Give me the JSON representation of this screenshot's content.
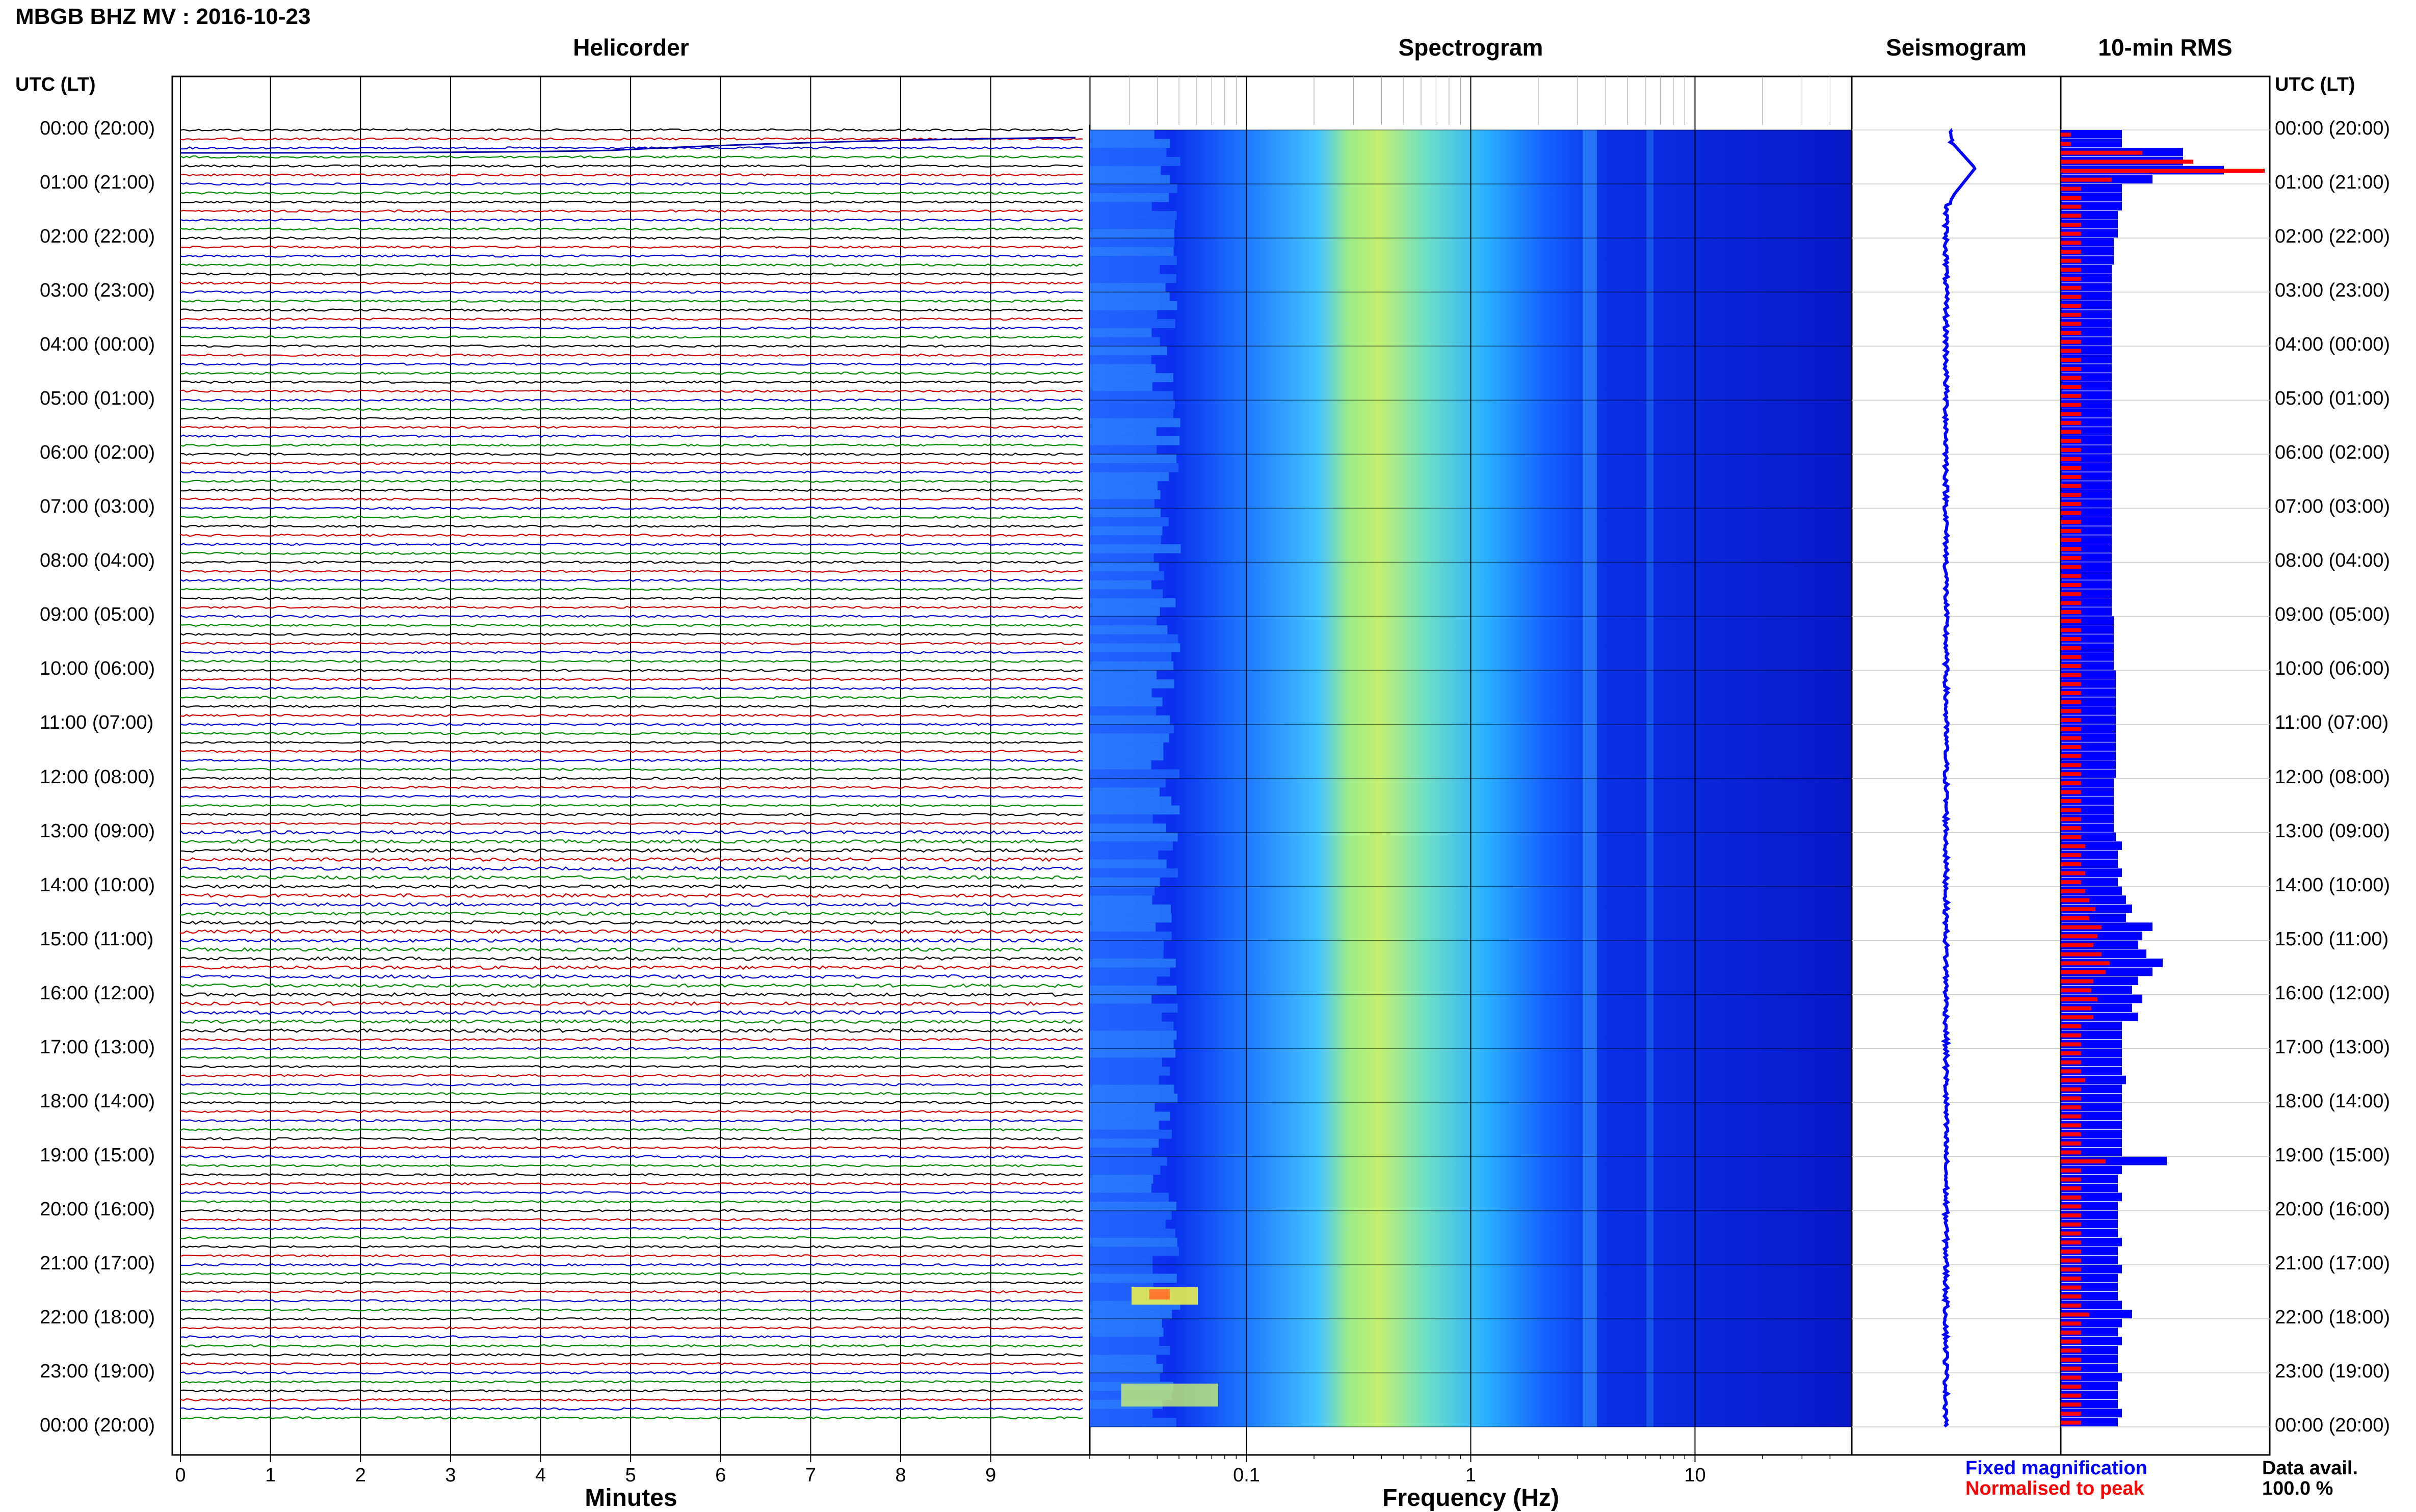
{
  "title": "MBGB BHZ MV : 2016-10-23",
  "panels": {
    "helicorder": "Helicorder",
    "spectrogram": "Spectrogram",
    "seismogram": "Seismogram",
    "rms": "10-min RMS"
  },
  "axis_headers": {
    "left": "UTC (LT)",
    "right": "UTC (LT)"
  },
  "time_labels": [
    "00:00 (20:00)",
    "01:00 (21:00)",
    "02:00 (22:00)",
    "03:00 (23:00)",
    "04:00 (00:00)",
    "05:00 (01:00)",
    "06:00 (02:00)",
    "07:00 (03:00)",
    "08:00 (04:00)",
    "09:00 (05:00)",
    "10:00 (06:00)",
    "11:00 (07:00)",
    "12:00 (08:00)",
    "13:00 (09:00)",
    "14:00 (10:00)",
    "15:00 (11:00)",
    "16:00 (12:00)",
    "17:00 (13:00)",
    "18:00 (14:00)",
    "19:00 (15:00)",
    "20:00 (16:00)",
    "21:00 (17:00)",
    "22:00 (18:00)",
    "23:00 (19:00)",
    "00:00 (20:00)"
  ],
  "x_axes": {
    "minutes": {
      "label": "Minutes",
      "ticks": [
        "0",
        "1",
        "2",
        "3",
        "4",
        "5",
        "6",
        "7",
        "8",
        "9"
      ]
    },
    "frequency": {
      "label": "Frequency (Hz)",
      "ticks": [
        "0.1",
        "1",
        "10"
      ]
    }
  },
  "legend": {
    "fixed": {
      "text": "Fixed magnification",
      "color": "#0000ff"
    },
    "normalised": {
      "text": "Normalised to peak",
      "color": "#ff0000"
    }
  },
  "data_avail": {
    "label": "Data avail.",
    "value": "100.0 %"
  },
  "colors": {
    "trace_cycle": [
      "#000000",
      "#cc0000",
      "#0000cc",
      "#008800"
    ],
    "rms_fixed": "#0000ff",
    "rms_norm": "#ff0000",
    "seismogram": "#0000ff"
  },
  "chart_data": {
    "type": "heatmap",
    "spectrogram_freq_range_hz": [
      0.02,
      50
    ],
    "spectrogram_scale": "log",
    "helicorder_minutes_range": [
      0,
      10
    ],
    "rows_per_hour": 6,
    "rms_fixed_relative": [
      0.3,
      0.3,
      0.6,
      0.6,
      0.8,
      0.45,
      0.3,
      0.3,
      0.3,
      0.28,
      0.28,
      0.28,
      0.26,
      0.26,
      0.26,
      0.25,
      0.25,
      0.25,
      0.25,
      0.25,
      0.25,
      0.25,
      0.25,
      0.25,
      0.25,
      0.25,
      0.25,
      0.25,
      0.25,
      0.25,
      0.25,
      0.25,
      0.25,
      0.25,
      0.25,
      0.25,
      0.25,
      0.25,
      0.25,
      0.25,
      0.25,
      0.25,
      0.25,
      0.25,
      0.25,
      0.25,
      0.25,
      0.25,
      0.25,
      0.25,
      0.25,
      0.25,
      0.25,
      0.25,
      0.26,
      0.26,
      0.26,
      0.26,
      0.26,
      0.26,
      0.27,
      0.27,
      0.27,
      0.27,
      0.27,
      0.27,
      0.27,
      0.27,
      0.27,
      0.27,
      0.27,
      0.27,
      0.26,
      0.26,
      0.26,
      0.26,
      0.26,
      0.26,
      0.27,
      0.3,
      0.28,
      0.28,
      0.3,
      0.28,
      0.3,
      0.32,
      0.35,
      0.32,
      0.45,
      0.4,
      0.38,
      0.42,
      0.5,
      0.45,
      0.38,
      0.35,
      0.4,
      0.35,
      0.38,
      0.3,
      0.3,
      0.3,
      0.3,
      0.3,
      0.3,
      0.32,
      0.3,
      0.3,
      0.3,
      0.3,
      0.3,
      0.3,
      0.3,
      0.3,
      0.52,
      0.3,
      0.28,
      0.28,
      0.3,
      0.28,
      0.28,
      0.28,
      0.28,
      0.3,
      0.28,
      0.28,
      0.3,
      0.28,
      0.28,
      0.28,
      0.3,
      0.35,
      0.3,
      0.28,
      0.3,
      0.28,
      0.28,
      0.28,
      0.3,
      0.28,
      0.28,
      0.28,
      0.3,
      0.28
    ],
    "rms_norm_relative": [
      0.05,
      0.05,
      0.4,
      0.65,
      1.0,
      0.25,
      0.1,
      0.1,
      0.1,
      0.1,
      0.1,
      0.1,
      0.1,
      0.1,
      0.1,
      0.1,
      0.1,
      0.1,
      0.1,
      0.1,
      0.1,
      0.1,
      0.1,
      0.1,
      0.1,
      0.1,
      0.1,
      0.1,
      0.1,
      0.1,
      0.1,
      0.1,
      0.1,
      0.1,
      0.1,
      0.1,
      0.1,
      0.1,
      0.1,
      0.1,
      0.1,
      0.1,
      0.1,
      0.1,
      0.1,
      0.1,
      0.1,
      0.1,
      0.1,
      0.1,
      0.1,
      0.1,
      0.1,
      0.1,
      0.1,
      0.1,
      0.1,
      0.1,
      0.1,
      0.1,
      0.1,
      0.1,
      0.1,
      0.1,
      0.1,
      0.1,
      0.1,
      0.1,
      0.1,
      0.1,
      0.1,
      0.1,
      0.1,
      0.1,
      0.1,
      0.1,
      0.1,
      0.1,
      0.1,
      0.12,
      0.1,
      0.1,
      0.12,
      0.1,
      0.12,
      0.14,
      0.17,
      0.14,
      0.2,
      0.18,
      0.16,
      0.2,
      0.24,
      0.22,
      0.16,
      0.15,
      0.18,
      0.15,
      0.16,
      0.1,
      0.1,
      0.1,
      0.1,
      0.1,
      0.1,
      0.12,
      0.1,
      0.1,
      0.1,
      0.1,
      0.1,
      0.1,
      0.1,
      0.1,
      0.22,
      0.1,
      0.1,
      0.1,
      0.1,
      0.1,
      0.1,
      0.1,
      0.1,
      0.1,
      0.1,
      0.1,
      0.1,
      0.1,
      0.1,
      0.1,
      0.1,
      0.14,
      0.1,
      0.1,
      0.1,
      0.1,
      0.1,
      0.1,
      0.1,
      0.1,
      0.1,
      0.1,
      0.1,
      0.1
    ]
  }
}
